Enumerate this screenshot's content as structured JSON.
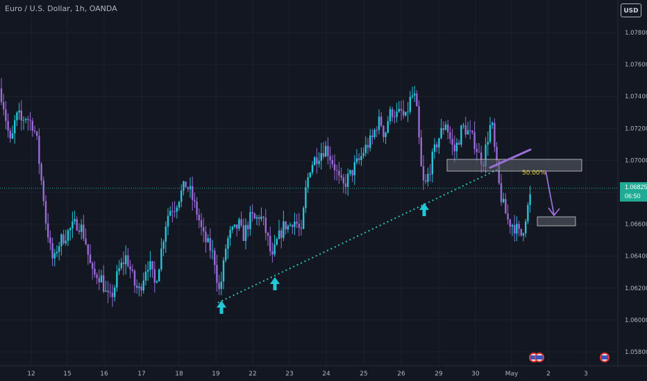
{
  "header": {
    "symbol_title": "Euro / U.S. Dollar, 1h, OANDA",
    "currency_button": "USD"
  },
  "price_tag": {
    "price": "1.06825",
    "countdown": "06:50"
  },
  "colors": {
    "background": "#131722",
    "bull": "#26c6da",
    "bear": "#9c6ad8",
    "trendline": "#2ec4b6",
    "arrow": "#9b6fd8",
    "zone": "#cfcfcf"
  },
  "chart_data": {
    "type": "candlestick",
    "instrument": "Euro / U.S. Dollar",
    "timeframe": "1h",
    "y_tick_labels": [
      "1.07800",
      "1.07600",
      "1.07400",
      "1.07200",
      "1.07000",
      "1.06800",
      "1.06600",
      "1.06400",
      "1.06200",
      "1.06000",
      "1.05800"
    ],
    "y_ticks": [
      1.078,
      1.076,
      1.074,
      1.072,
      1.07,
      1.068,
      1.066,
      1.064,
      1.062,
      1.06,
      1.058
    ],
    "ylim": [
      1.0574,
      1.0808
    ],
    "x_tick_labels": [
      "12",
      "15",
      "16",
      "17",
      "18",
      "19",
      "22",
      "23",
      "24",
      "25",
      "26",
      "29",
      "30",
      "May",
      "2",
      "3"
    ],
    "current_price": 1.06825,
    "price_path": [
      {
        "x": 0,
        "y": 1.0745
      },
      {
        "x": 5,
        "y": 1.0735
      },
      {
        "x": 10,
        "y": 1.0722
      },
      {
        "x": 16,
        "y": 1.0708
      },
      {
        "x": 20,
        "y": 1.0722
      },
      {
        "x": 26,
        "y": 1.0729
      },
      {
        "x": 31,
        "y": 1.0724
      },
      {
        "x": 36,
        "y": 1.0728
      },
      {
        "x": 42,
        "y": 1.0725
      },
      {
        "x": 48,
        "y": 1.0722
      },
      {
        "x": 54,
        "y": 1.071
      },
      {
        "x": 58,
        "y": 1.0692
      },
      {
        "x": 62,
        "y": 1.068
      },
      {
        "x": 66,
        "y": 1.0662
      },
      {
        "x": 70,
        "y": 1.0652
      },
      {
        "x": 74,
        "y": 1.064
      },
      {
        "x": 78,
        "y": 1.0636
      },
      {
        "x": 82,
        "y": 1.0645
      },
      {
        "x": 88,
        "y": 1.065
      },
      {
        "x": 94,
        "y": 1.0653
      },
      {
        "x": 100,
        "y": 1.0656
      },
      {
        "x": 106,
        "y": 1.0659
      },
      {
        "x": 112,
        "y": 1.0661
      },
      {
        "x": 118,
        "y": 1.0657
      },
      {
        "x": 124,
        "y": 1.0648
      },
      {
        "x": 128,
        "y": 1.0638
      },
      {
        "x": 134,
        "y": 1.0627
      },
      {
        "x": 140,
        "y": 1.0629
      },
      {
        "x": 146,
        "y": 1.0626
      },
      {
        "x": 152,
        "y": 1.0617
      },
      {
        "x": 158,
        "y": 1.0612
      },
      {
        "x": 164,
        "y": 1.0619
      },
      {
        "x": 170,
        "y": 1.063
      },
      {
        "x": 176,
        "y": 1.0635
      },
      {
        "x": 182,
        "y": 1.064
      },
      {
        "x": 188,
        "y": 1.0631
      },
      {
        "x": 194,
        "y": 1.0622
      },
      {
        "x": 200,
        "y": 1.0618
      },
      {
        "x": 206,
        "y": 1.0626
      },
      {
        "x": 212,
        "y": 1.0636
      },
      {
        "x": 218,
        "y": 1.0632
      },
      {
        "x": 222,
        "y": 1.0621
      },
      {
        "x": 228,
        "y": 1.0632
      },
      {
        "x": 234,
        "y": 1.0648
      },
      {
        "x": 240,
        "y": 1.0664
      },
      {
        "x": 246,
        "y": 1.067
      },
      {
        "x": 252,
        "y": 1.0671
      },
      {
        "x": 258,
        "y": 1.0677
      },
      {
        "x": 264,
        "y": 1.0682
      },
      {
        "x": 268,
        "y": 1.0685
      },
      {
        "x": 274,
        "y": 1.068
      },
      {
        "x": 280,
        "y": 1.0672
      },
      {
        "x": 286,
        "y": 1.0664
      },
      {
        "x": 292,
        "y": 1.0653
      },
      {
        "x": 298,
        "y": 1.0648
      },
      {
        "x": 304,
        "y": 1.0644
      },
      {
        "x": 310,
        "y": 1.0636
      },
      {
        "x": 315,
        "y": 1.0617
      },
      {
        "x": 320,
        "y": 1.0627
      },
      {
        "x": 326,
        "y": 1.0648
      },
      {
        "x": 332,
        "y": 1.0654
      },
      {
        "x": 338,
        "y": 1.0656
      },
      {
        "x": 344,
        "y": 1.066
      },
      {
        "x": 350,
        "y": 1.0652
      },
      {
        "x": 356,
        "y": 1.0659
      },
      {
        "x": 362,
        "y": 1.0665
      },
      {
        "x": 368,
        "y": 1.0662
      },
      {
        "x": 374,
        "y": 1.0666
      },
      {
        "x": 380,
        "y": 1.066
      },
      {
        "x": 386,
        "y": 1.065
      },
      {
        "x": 392,
        "y": 1.0637
      },
      {
        "x": 398,
        "y": 1.0648
      },
      {
        "x": 404,
        "y": 1.0654
      },
      {
        "x": 410,
        "y": 1.066
      },
      {
        "x": 416,
        "y": 1.0658
      },
      {
        "x": 422,
        "y": 1.0663
      },
      {
        "x": 428,
        "y": 1.066
      },
      {
        "x": 434,
        "y": 1.0653
      },
      {
        "x": 440,
        "y": 1.068
      },
      {
        "x": 446,
        "y": 1.0695
      },
      {
        "x": 452,
        "y": 1.07
      },
      {
        "x": 458,
        "y": 1.0703
      },
      {
        "x": 464,
        "y": 1.0706
      },
      {
        "x": 470,
        "y": 1.0708
      },
      {
        "x": 476,
        "y": 1.0702
      },
      {
        "x": 482,
        "y": 1.0696
      },
      {
        "x": 488,
        "y": 1.0688
      },
      {
        "x": 494,
        "y": 1.0683
      },
      {
        "x": 500,
        "y": 1.0688
      },
      {
        "x": 506,
        "y": 1.0692
      },
      {
        "x": 512,
        "y": 1.0697
      },
      {
        "x": 518,
        "y": 1.07
      },
      {
        "x": 524,
        "y": 1.0706
      },
      {
        "x": 530,
        "y": 1.071
      },
      {
        "x": 536,
        "y": 1.0713
      },
      {
        "x": 542,
        "y": 1.0722
      },
      {
        "x": 548,
        "y": 1.0725
      },
      {
        "x": 554,
        "y": 1.0715
      },
      {
        "x": 560,
        "y": 1.0728
      },
      {
        "x": 566,
        "y": 1.0731
      },
      {
        "x": 572,
        "y": 1.0728
      },
      {
        "x": 578,
        "y": 1.073
      },
      {
        "x": 584,
        "y": 1.0725
      },
      {
        "x": 590,
        "y": 1.0737
      },
      {
        "x": 596,
        "y": 1.0742
      },
      {
        "x": 600,
        "y": 1.0732
      },
      {
        "x": 604,
        "y": 1.071
      },
      {
        "x": 608,
        "y": 1.0688
      },
      {
        "x": 612,
        "y": 1.0683
      },
      {
        "x": 618,
        "y": 1.0693
      },
      {
        "x": 624,
        "y": 1.0703
      },
      {
        "x": 630,
        "y": 1.0712
      },
      {
        "x": 636,
        "y": 1.0718
      },
      {
        "x": 642,
        "y": 1.0724
      },
      {
        "x": 648,
        "y": 1.0714
      },
      {
        "x": 654,
        "y": 1.0705
      },
      {
        "x": 660,
        "y": 1.0712
      },
      {
        "x": 666,
        "y": 1.0721
      },
      {
        "x": 672,
        "y": 1.0719
      },
      {
        "x": 678,
        "y": 1.0715
      },
      {
        "x": 684,
        "y": 1.0711
      },
      {
        "x": 690,
        "y": 1.0703
      },
      {
        "x": 696,
        "y": 1.0699
      },
      {
        "x": 702,
        "y": 1.0713
      },
      {
        "x": 708,
        "y": 1.0725
      },
      {
        "x": 712,
        "y": 1.0708
      },
      {
        "x": 716,
        "y": 1.0694
      },
      {
        "x": 720,
        "y": 1.068
      },
      {
        "x": 726,
        "y": 1.067
      },
      {
        "x": 732,
        "y": 1.0662
      },
      {
        "x": 738,
        "y": 1.066
      },
      {
        "x": 744,
        "y": 1.0657
      },
      {
        "x": 750,
        "y": 1.0652
      },
      {
        "x": 754,
        "y": 1.0658
      },
      {
        "x": 758,
        "y": 1.0667
      },
      {
        "x": 762,
        "y": 1.0673
      },
      {
        "x": 766,
        "y": 1.06825
      }
    ],
    "annotations": {
      "fib_label": "50.00%",
      "zones": [
        {
          "from_x": 644,
          "to_x": 838,
          "top": 1.07,
          "bottom": 1.06975
        },
        {
          "from_x": 774,
          "to_x": 829,
          "top": 1.06645,
          "bottom": 1.06615
        }
      ]
    }
  }
}
